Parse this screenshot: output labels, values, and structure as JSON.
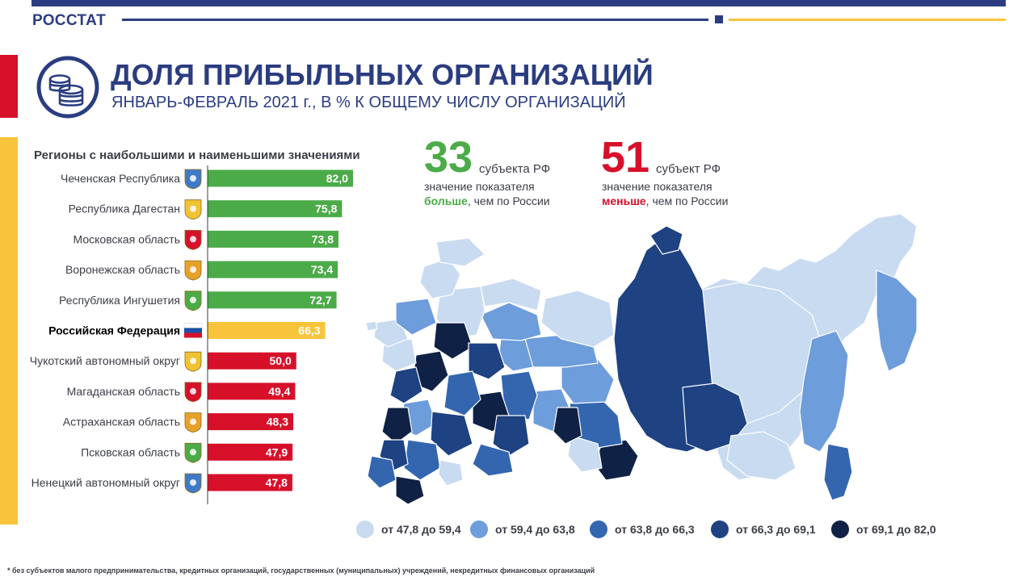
{
  "header": {
    "brand": "РОССТАТ",
    "title": "ДОЛЯ ПРИБЫЛЬНЫХ ОРГАНИЗАЦИЙ",
    "subtitle": "ЯНВАРЬ-ФЕВРАЛЬ 2021 г., В % К ОБЩЕМУ ЧИСЛУ ОРГАНИЗАЦИЙ"
  },
  "title_icon": "coins-stack-icon",
  "colors": {
    "brand_blue": "#2b3d80",
    "accent_red": "#d7102a",
    "accent_yellow": "#f8c43c",
    "bar_green": "#4bab48",
    "bar_yellow": "#f8c43c",
    "bar_red": "#d7102a"
  },
  "stats": {
    "more": {
      "number": "33",
      "unit": "субъекта РФ",
      "line1": "значение показателя",
      "emph": "больше",
      "rest": ", чем по России"
    },
    "less": {
      "number": "51",
      "unit": "субъект РФ",
      "line1": "значение показателя",
      "emph": "меньше",
      "rest": ", чем по России"
    }
  },
  "legend": [
    {
      "label": "от 47,8 до 59,4",
      "color": "#c9dbf1"
    },
    {
      "label": "от 59,4 до 63,8",
      "color": "#6d9ddb"
    },
    {
      "label": "от 63,8 до 66,3",
      "color": "#3466b0"
    },
    {
      "label": "от 66,3 до 69,1",
      "color": "#1e4282"
    },
    {
      "label": "от 69,1 до 82,0",
      "color": "#0f2245"
    }
  ],
  "footnote": "* без субъектов малого предпринимательства, кредитных организаций, государственных (муниципальных) учреждений, некредитных финансовых организаций",
  "chart_data": {
    "type": "bar",
    "orientation": "horizontal",
    "title": "Регионы с наибольшими и наименьшими значениями",
    "categories": [
      "Чеченская Республика",
      "Республика Дагестан",
      "Московская область",
      "Воронежская область",
      "Республика Ингушетия",
      "Российская Федерация",
      "Чукотский автономный округ",
      "Магаданская область",
      "Астраханская область",
      "Псковская область",
      "Ненецкий автономный округ"
    ],
    "values": [
      82.0,
      75.8,
      73.8,
      73.4,
      72.7,
      66.3,
      50.0,
      49.4,
      48.3,
      47.9,
      47.8
    ],
    "value_labels": [
      "82,0",
      "75,8",
      "73,8",
      "73,4",
      "72,7",
      "66,3",
      "50,0",
      "49,4",
      "48,3",
      "47,9",
      "47,8"
    ],
    "groups": [
      "top",
      "top",
      "top",
      "top",
      "top",
      "country",
      "bottom",
      "bottom",
      "bottom",
      "bottom",
      "bottom"
    ],
    "emblems": [
      "chechnya-emblem-icon",
      "dagestan-emblem-icon",
      "moscow-oblast-emblem-icon",
      "voronezh-emblem-icon",
      "ingushetia-emblem-icon",
      "russia-flag-icon",
      "chukotka-emblem-icon",
      "magadan-emblem-icon",
      "astrakhan-emblem-icon",
      "pskov-emblem-icon",
      "nenets-emblem-icon"
    ],
    "highlight_index": 5,
    "xlim": [
      0,
      82
    ]
  }
}
